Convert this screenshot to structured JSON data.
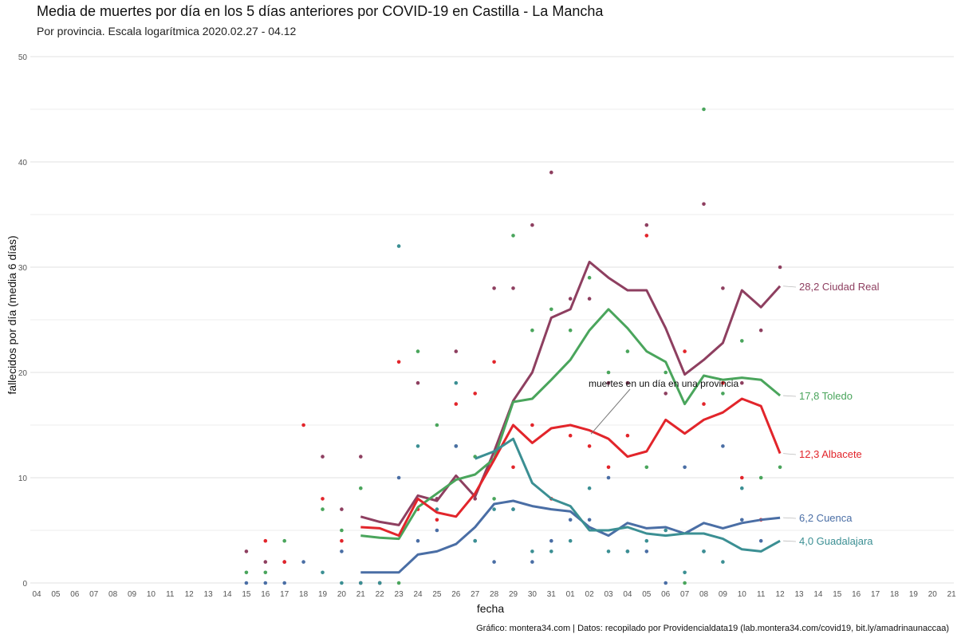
{
  "title": "Media de muertes por día en los 5 días anteriores por COVID-19 en Castilla - La Mancha",
  "subtitle": "Por provincia. Escala logarítmica  2020.02.27 - 04.12",
  "caption": "Gráfico: montera34.com | Datos: recopilado por Providencialdata19 (lab.montera34.com/covid19, bit.ly/amadrinaunaccaa)",
  "chart_data": {
    "type": "line",
    "xlabel": "fecha",
    "ylabel": "fallecidos por día (media 6 días)",
    "ylim": [
      0,
      50
    ],
    "yticks": [
      0,
      10,
      20,
      30,
      40,
      50
    ],
    "grid": true,
    "categories": [
      "04",
      "05",
      "06",
      "07",
      "08",
      "09",
      "10",
      "11",
      "12",
      "13",
      "14",
      "15",
      "16",
      "17",
      "18",
      "19",
      "20",
      "21",
      "22",
      "23",
      "24",
      "25",
      "26",
      "27",
      "28",
      "29",
      "30",
      "31",
      "01",
      "02",
      "03",
      "04",
      "05",
      "06",
      "07",
      "08",
      "09",
      "10",
      "11",
      "12",
      "13",
      "14",
      "15",
      "16",
      "17",
      "18",
      "19",
      "20",
      "21"
    ],
    "annotation": {
      "text": "muertes en un día en una provincia",
      "x_index": 29,
      "y": 14
    },
    "series": [
      {
        "name": "Ciudad Real",
        "label": "28,2 Ciudad Real",
        "color": "#8e3f60",
        "line_start": 17,
        "line": [
          6.3,
          5.8,
          5.5,
          8.3,
          7.8,
          10.2,
          8.2,
          12.5,
          17.3,
          20,
          25.2,
          26,
          30.5,
          29,
          27.8,
          27.8,
          24.2,
          19.8,
          21.2,
          22.8,
          27.8,
          26.2,
          28.2
        ],
        "points_start": 11,
        "points": [
          3,
          2,
          2,
          null,
          12,
          7,
          12,
          null,
          null,
          19,
          8,
          22,
          8,
          28,
          28,
          34,
          39,
          27,
          27,
          19,
          19,
          34,
          18,
          null,
          36,
          28,
          19,
          24,
          30
        ]
      },
      {
        "name": "Toledo",
        "label": "17,8 Toledo",
        "color": "#4aa55c",
        "line_start": 17,
        "line": [
          4.5,
          4.3,
          4.2,
          7.2,
          8.5,
          9.8,
          10.3,
          11.8,
          17.2,
          17.5,
          19.3,
          21.2,
          24,
          26,
          24.2,
          22,
          21,
          17,
          19.7,
          19.3,
          19.5,
          19.3,
          17.8
        ],
        "points_start": 11,
        "points": [
          1,
          1,
          4,
          null,
          7,
          5,
          9,
          0,
          0,
          22,
          15,
          13,
          12,
          8,
          33,
          24,
          26,
          24,
          29,
          20,
          22,
          11,
          20,
          0,
          45,
          18,
          23,
          10,
          11
        ]
      },
      {
        "name": "Albacete",
        "label": "12,3 Albacete",
        "color": "#e2252b",
        "line_start": 17,
        "line": [
          5.3,
          5.2,
          4.5,
          8,
          6.7,
          6.3,
          8.5,
          11.7,
          15,
          13.3,
          14.7,
          15,
          14.5,
          13.7,
          12,
          12.5,
          15.5,
          14.2,
          15.5,
          16.2,
          17.5,
          16.8,
          12.3
        ],
        "points_start": 11,
        "points": [
          null,
          4,
          2,
          15,
          8,
          4,
          0,
          0,
          21,
          7,
          6,
          17,
          18,
          21,
          11,
          15,
          8,
          14,
          13,
          11,
          14,
          33,
          null,
          22,
          17,
          19,
          10,
          6
        ]
      },
      {
        "name": "Cuenca",
        "label": "6,2 Cuenca",
        "color": "#4a6ea5",
        "line_start": 17,
        "line": [
          1,
          1,
          1,
          2.7,
          3,
          3.7,
          5.3,
          7.5,
          7.8,
          7.3,
          7,
          6.8,
          5.3,
          4.5,
          5.7,
          5.2,
          5.3,
          4.7,
          5.7,
          5.2,
          5.7,
          6,
          6.2
        ],
        "points_start": 11,
        "points": [
          0,
          0,
          0,
          2,
          null,
          3,
          0,
          0,
          10,
          4,
          5,
          13,
          4,
          2,
          7,
          2,
          4,
          6,
          6,
          10,
          3,
          3,
          0,
          11,
          3,
          13,
          6,
          4
        ]
      },
      {
        "name": "Guadalajara",
        "label": "4,0 Guadalajara",
        "color": "#3b8f93",
        "line_start": 17,
        "line": [
          null,
          null,
          null,
          null,
          null,
          null,
          11.8,
          12.5,
          13.7,
          9.5,
          8,
          7.3,
          5,
          5,
          5.3,
          4.7,
          4.5,
          4.7,
          4.7,
          4.2,
          3.2,
          3,
          4
        ],
        "points_start": 11,
        "points": [
          null,
          null,
          null,
          null,
          1,
          0,
          0,
          0,
          32,
          13,
          7,
          19,
          4,
          7,
          7,
          3,
          3,
          4,
          9,
          3,
          3,
          4,
          5,
          1,
          3,
          2,
          9
        ]
      }
    ]
  }
}
